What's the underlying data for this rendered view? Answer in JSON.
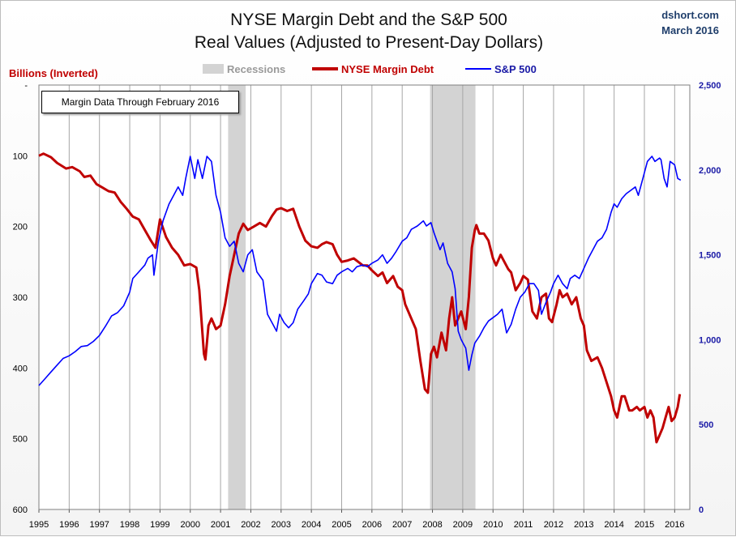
{
  "header": {
    "title_line1": "NYSE Margin Debt and the S&P 500",
    "title_line2": "Real Values (Adjusted to Present-Day Dollars)",
    "source_line1": "dshort.com",
    "source_line2": "March 2016"
  },
  "annotation": "Margin Data Through February 2016",
  "colors": {
    "debt": "#c00000",
    "sp500": "#0000ff",
    "recession": "#d3d3d3",
    "grid": "#a6a6a6"
  },
  "chart_data": {
    "type": "line",
    "title": "NYSE Margin Debt and the S&P 500",
    "subtitle": "Real Values (Adjusted to Present-Day Dollars)",
    "x_axis": {
      "range": [
        1995.0,
        2016.5
      ],
      "ticks": [
        "1995",
        "1996",
        "1997",
        "1998",
        "1999",
        "2000",
        "2001",
        "2002",
        "2003",
        "2004",
        "2005",
        "2006",
        "2007",
        "2008",
        "2009",
        "2010",
        "2011",
        "2012",
        "2013",
        "2014",
        "2015",
        "2016"
      ]
    },
    "y_left": {
      "label": "Billions (Inverted)",
      "inverted": true,
      "range": [
        0,
        600
      ],
      "ticks": [
        "-",
        "100",
        "200",
        "300",
        "400",
        "500",
        "600"
      ]
    },
    "y_right": {
      "range": [
        0,
        2500
      ],
      "ticks": [
        "0",
        "500",
        "1,000",
        "1,500",
        "2,000",
        "2,500"
      ]
    },
    "grid": "vertical",
    "legend": {
      "placement": "top",
      "entries": [
        "Recessions",
        "NYSE Margin Debt",
        "S&P 500"
      ]
    },
    "recessions": [
      [
        2001.25,
        2001.83
      ],
      [
        2007.92,
        2009.42
      ]
    ],
    "series": [
      {
        "name": "NYSE Margin Debt",
        "axis": "left",
        "points": [
          [
            1995.0,
            100
          ],
          [
            1995.15,
            97
          ],
          [
            1995.4,
            102
          ],
          [
            1995.6,
            110
          ],
          [
            1995.9,
            118
          ],
          [
            1996.1,
            116
          ],
          [
            1996.35,
            122
          ],
          [
            1996.5,
            130
          ],
          [
            1996.7,
            128
          ],
          [
            1996.9,
            140
          ],
          [
            1997.1,
            145
          ],
          [
            1997.3,
            150
          ],
          [
            1997.5,
            152
          ],
          [
            1997.7,
            165
          ],
          [
            1997.9,
            175
          ],
          [
            1998.1,
            186
          ],
          [
            1998.3,
            190
          ],
          [
            1998.5,
            205
          ],
          [
            1998.7,
            220
          ],
          [
            1998.85,
            230
          ],
          [
            1999.0,
            190
          ],
          [
            1999.2,
            215
          ],
          [
            1999.4,
            230
          ],
          [
            1999.6,
            240
          ],
          [
            1999.8,
            255
          ],
          [
            2000.0,
            253
          ],
          [
            2000.2,
            258
          ],
          [
            2000.3,
            290
          ],
          [
            2000.45,
            380
          ],
          [
            2000.5,
            388
          ],
          [
            2000.6,
            340
          ],
          [
            2000.7,
            330
          ],
          [
            2000.85,
            345
          ],
          [
            2001.0,
            340
          ],
          [
            2001.15,
            310
          ],
          [
            2001.3,
            270
          ],
          [
            2001.45,
            240
          ],
          [
            2001.6,
            210
          ],
          [
            2001.75,
            196
          ],
          [
            2001.9,
            205
          ],
          [
            2002.1,
            200
          ],
          [
            2002.3,
            195
          ],
          [
            2002.5,
            200
          ],
          [
            2002.7,
            185
          ],
          [
            2002.85,
            176
          ],
          [
            2003.0,
            174
          ],
          [
            2003.2,
            178
          ],
          [
            2003.4,
            175
          ],
          [
            2003.6,
            200
          ],
          [
            2003.8,
            220
          ],
          [
            2004.0,
            228
          ],
          [
            2004.2,
            230
          ],
          [
            2004.35,
            225
          ],
          [
            2004.5,
            222
          ],
          [
            2004.7,
            225
          ],
          [
            2004.85,
            240
          ],
          [
            2005.0,
            250
          ],
          [
            2005.2,
            248
          ],
          [
            2005.4,
            245
          ],
          [
            2005.55,
            250
          ],
          [
            2005.7,
            255
          ],
          [
            2005.85,
            255
          ],
          [
            2006.0,
            262
          ],
          [
            2006.2,
            270
          ],
          [
            2006.35,
            265
          ],
          [
            2006.5,
            280
          ],
          [
            2006.7,
            270
          ],
          [
            2006.85,
            285
          ],
          [
            2007.0,
            290
          ],
          [
            2007.1,
            310
          ],
          [
            2007.3,
            330
          ],
          [
            2007.45,
            345
          ],
          [
            2007.6,
            390
          ],
          [
            2007.75,
            430
          ],
          [
            2007.85,
            435
          ],
          [
            2007.95,
            380
          ],
          [
            2008.05,
            370
          ],
          [
            2008.15,
            385
          ],
          [
            2008.3,
            350
          ],
          [
            2008.45,
            375
          ],
          [
            2008.55,
            330
          ],
          [
            2008.65,
            300
          ],
          [
            2008.75,
            340
          ],
          [
            2008.95,
            320
          ],
          [
            2009.1,
            345
          ],
          [
            2009.2,
            300
          ],
          [
            2009.3,
            230
          ],
          [
            2009.4,
            205
          ],
          [
            2009.45,
            198
          ],
          [
            2009.55,
            210
          ],
          [
            2009.7,
            210
          ],
          [
            2009.85,
            220
          ],
          [
            2010.0,
            245
          ],
          [
            2010.1,
            255
          ],
          [
            2010.25,
            240
          ],
          [
            2010.5,
            260
          ],
          [
            2010.6,
            265
          ],
          [
            2010.75,
            290
          ],
          [
            2010.9,
            280
          ],
          [
            2011.0,
            270
          ],
          [
            2011.15,
            275
          ],
          [
            2011.3,
            320
          ],
          [
            2011.45,
            330
          ],
          [
            2011.6,
            300
          ],
          [
            2011.75,
            295
          ],
          [
            2011.85,
            330
          ],
          [
            2011.95,
            335
          ],
          [
            2012.1,
            310
          ],
          [
            2012.2,
            290
          ],
          [
            2012.3,
            300
          ],
          [
            2012.45,
            295
          ],
          [
            2012.6,
            310
          ],
          [
            2012.75,
            300
          ],
          [
            2012.9,
            330
          ],
          [
            2013.0,
            340
          ],
          [
            2013.1,
            375
          ],
          [
            2013.25,
            390
          ],
          [
            2013.45,
            385
          ],
          [
            2013.6,
            400
          ],
          [
            2013.75,
            420
          ],
          [
            2013.9,
            440
          ],
          [
            2014.0,
            460
          ],
          [
            2014.1,
            470
          ],
          [
            2014.25,
            440
          ],
          [
            2014.35,
            440
          ],
          [
            2014.5,
            460
          ],
          [
            2014.6,
            460
          ],
          [
            2014.75,
            455
          ],
          [
            2014.85,
            460
          ],
          [
            2015.0,
            455
          ],
          [
            2015.1,
            470
          ],
          [
            2015.2,
            460
          ],
          [
            2015.3,
            470
          ],
          [
            2015.4,
            505
          ],
          [
            2015.5,
            495
          ],
          [
            2015.6,
            485
          ],
          [
            2015.7,
            470
          ],
          [
            2015.8,
            455
          ],
          [
            2015.9,
            475
          ],
          [
            2016.0,
            470
          ],
          [
            2016.1,
            455
          ],
          [
            2016.17,
            437
          ]
        ]
      },
      {
        "name": "S&P 500",
        "axis": "right",
        "points": [
          [
            1995.0,
            730
          ],
          [
            1995.2,
            770
          ],
          [
            1995.4,
            810
          ],
          [
            1995.6,
            850
          ],
          [
            1995.8,
            890
          ],
          [
            1996.0,
            905
          ],
          [
            1996.2,
            930
          ],
          [
            1996.4,
            960
          ],
          [
            1996.6,
            965
          ],
          [
            1996.8,
            990
          ],
          [
            1997.0,
            1025
          ],
          [
            1997.2,
            1080
          ],
          [
            1997.4,
            1140
          ],
          [
            1997.5,
            1150
          ],
          [
            1997.6,
            1160
          ],
          [
            1997.8,
            1200
          ],
          [
            1998.0,
            1280
          ],
          [
            1998.1,
            1360
          ],
          [
            1998.3,
            1400
          ],
          [
            1998.5,
            1440
          ],
          [
            1998.6,
            1480
          ],
          [
            1998.75,
            1500
          ],
          [
            1998.8,
            1380
          ],
          [
            1998.95,
            1580
          ],
          [
            1999.1,
            1700
          ],
          [
            1999.3,
            1800
          ],
          [
            1999.45,
            1850
          ],
          [
            1999.6,
            1900
          ],
          [
            1999.75,
            1850
          ],
          [
            1999.85,
            1950
          ],
          [
            2000.0,
            2080
          ],
          [
            2000.15,
            1950
          ],
          [
            2000.25,
            2060
          ],
          [
            2000.4,
            1950
          ],
          [
            2000.55,
            2080
          ],
          [
            2000.7,
            2050
          ],
          [
            2000.85,
            1850
          ],
          [
            2001.0,
            1750
          ],
          [
            2001.15,
            1600
          ],
          [
            2001.3,
            1550
          ],
          [
            2001.45,
            1580
          ],
          [
            2001.6,
            1450
          ],
          [
            2001.75,
            1400
          ],
          [
            2001.9,
            1500
          ],
          [
            2002.05,
            1530
          ],
          [
            2002.2,
            1400
          ],
          [
            2002.4,
            1350
          ],
          [
            2002.55,
            1150
          ],
          [
            2002.7,
            1100
          ],
          [
            2002.85,
            1050
          ],
          [
            2002.95,
            1150
          ],
          [
            2003.1,
            1100
          ],
          [
            2003.25,
            1070
          ],
          [
            2003.4,
            1100
          ],
          [
            2003.55,
            1180
          ],
          [
            2003.75,
            1230
          ],
          [
            2003.9,
            1270
          ],
          [
            2004.0,
            1330
          ],
          [
            2004.2,
            1390
          ],
          [
            2004.35,
            1380
          ],
          [
            2004.5,
            1340
          ],
          [
            2004.7,
            1330
          ],
          [
            2004.85,
            1380
          ],
          [
            2005.0,
            1400
          ],
          [
            2005.2,
            1420
          ],
          [
            2005.35,
            1400
          ],
          [
            2005.5,
            1430
          ],
          [
            2005.7,
            1440
          ],
          [
            2005.85,
            1430
          ],
          [
            2006.0,
            1450
          ],
          [
            2006.2,
            1470
          ],
          [
            2006.35,
            1500
          ],
          [
            2006.5,
            1450
          ],
          [
            2006.65,
            1480
          ],
          [
            2006.8,
            1520
          ],
          [
            2007.0,
            1580
          ],
          [
            2007.15,
            1600
          ],
          [
            2007.3,
            1650
          ],
          [
            2007.5,
            1670
          ],
          [
            2007.7,
            1700
          ],
          [
            2007.8,
            1670
          ],
          [
            2007.95,
            1690
          ],
          [
            2008.05,
            1630
          ],
          [
            2008.15,
            1580
          ],
          [
            2008.25,
            1530
          ],
          [
            2008.35,
            1570
          ],
          [
            2008.5,
            1450
          ],
          [
            2008.65,
            1400
          ],
          [
            2008.75,
            1300
          ],
          [
            2008.85,
            1050
          ],
          [
            2008.95,
            1000
          ],
          [
            2009.1,
            950
          ],
          [
            2009.2,
            820
          ],
          [
            2009.3,
            910
          ],
          [
            2009.4,
            980
          ],
          [
            2009.55,
            1020
          ],
          [
            2009.7,
            1070
          ],
          [
            2009.85,
            1110
          ],
          [
            2010.0,
            1130
          ],
          [
            2010.15,
            1150
          ],
          [
            2010.3,
            1180
          ],
          [
            2010.45,
            1040
          ],
          [
            2010.6,
            1090
          ],
          [
            2010.75,
            1180
          ],
          [
            2010.9,
            1250
          ],
          [
            2011.05,
            1280
          ],
          [
            2011.2,
            1330
          ],
          [
            2011.35,
            1330
          ],
          [
            2011.5,
            1290
          ],
          [
            2011.6,
            1150
          ],
          [
            2011.75,
            1220
          ],
          [
            2011.9,
            1280
          ],
          [
            2012.0,
            1330
          ],
          [
            2012.15,
            1380
          ],
          [
            2012.3,
            1330
          ],
          [
            2012.45,
            1300
          ],
          [
            2012.55,
            1360
          ],
          [
            2012.7,
            1380
          ],
          [
            2012.85,
            1360
          ],
          [
            2013.0,
            1420
          ],
          [
            2013.15,
            1480
          ],
          [
            2013.3,
            1530
          ],
          [
            2013.45,
            1580
          ],
          [
            2013.6,
            1600
          ],
          [
            2013.75,
            1650
          ],
          [
            2013.9,
            1750
          ],
          [
            2014.0,
            1800
          ],
          [
            2014.1,
            1780
          ],
          [
            2014.25,
            1830
          ],
          [
            2014.4,
            1860
          ],
          [
            2014.55,
            1880
          ],
          [
            2014.7,
            1900
          ],
          [
            2014.8,
            1850
          ],
          [
            2014.95,
            1950
          ],
          [
            2015.1,
            2050
          ],
          [
            2015.25,
            2080
          ],
          [
            2015.35,
            2050
          ],
          [
            2015.5,
            2070
          ],
          [
            2015.55,
            2060
          ],
          [
            2015.65,
            1950
          ],
          [
            2015.75,
            1900
          ],
          [
            2015.85,
            2050
          ],
          [
            2016.0,
            2030
          ],
          [
            2016.1,
            1950
          ],
          [
            2016.2,
            1940
          ]
        ]
      }
    ]
  }
}
